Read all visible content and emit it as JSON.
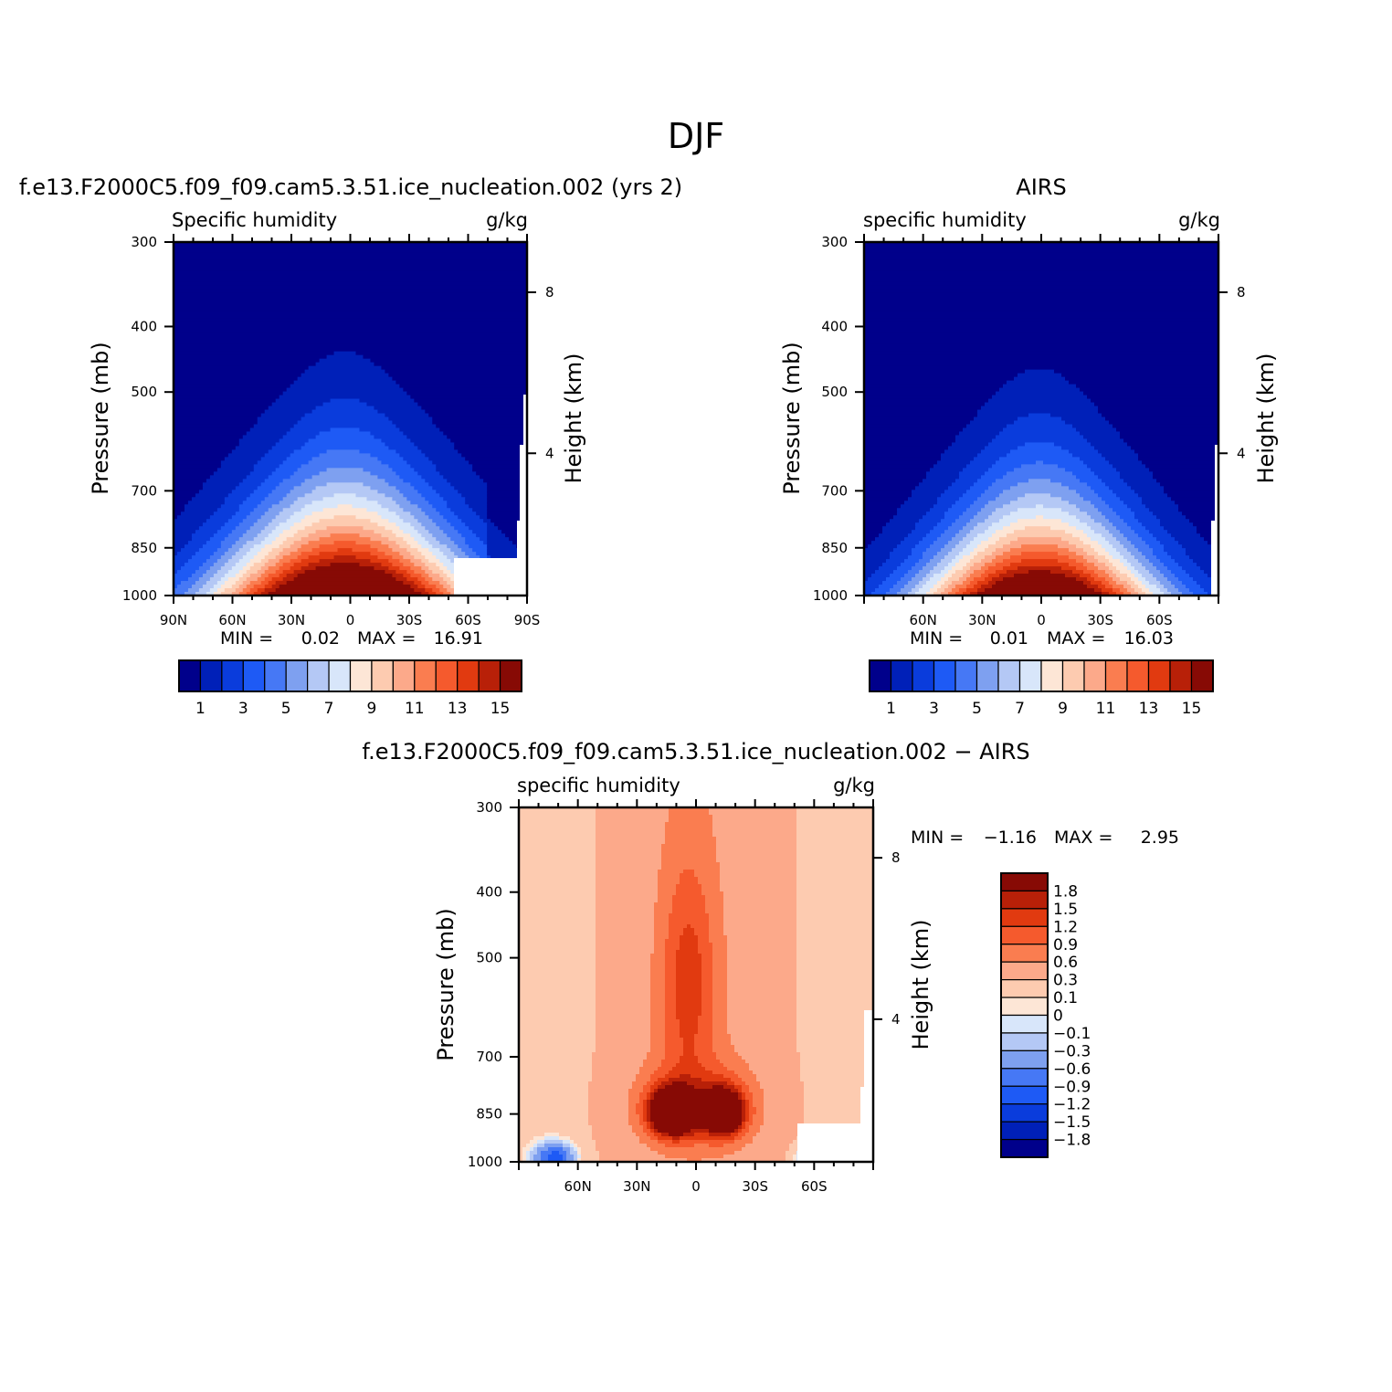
{
  "figure": {
    "title": "DJF"
  },
  "colors": {
    "abs_levels": [
      "#00008b",
      "#0020b8",
      "#0a3cdc",
      "#1e5af5",
      "#4678f5",
      "#7ea0f0",
      "#b4c8f5",
      "#d8e6fa",
      "#fde6d6",
      "#fdcbb0",
      "#fca98a",
      "#fa7d50",
      "#f55a2d",
      "#e13a10",
      "#b82008",
      "#870a05"
    ],
    "diff_levels": [
      "#00008b",
      "#0020b8",
      "#0a3cdc",
      "#1e5af5",
      "#4678f5",
      "#7ea0f0",
      "#b4c8f5",
      "#d8e6fa",
      "#fde6d6",
      "#fdcbb0",
      "#fca98a",
      "#fa7d50",
      "#f55a2d",
      "#e13a10",
      "#b82008",
      "#870a05"
    ]
  },
  "panels": [
    {
      "id": "model",
      "title": "f.e13.F2000C5.f09_f09.cam5.3.51.ice_nucleation.002 (yrs 2)",
      "left_label": "Specific humidity",
      "right_label": "g/kg",
      "ylabel": "Pressure (mb)",
      "ylabel_right": "Height (km)",
      "yticks": [
        "300",
        "400",
        "500",
        "700",
        "850",
        "1000"
      ],
      "yticks_right": [
        "8",
        "4"
      ],
      "xticks": [
        "90N",
        "60N",
        "30N",
        "0",
        "30S",
        "60S",
        "90S"
      ],
      "min_label": "MIN =",
      "min_value": "0.02",
      "max_label": "MAX =",
      "max_value": "16.91",
      "colorbar_labels": [
        "1",
        "3",
        "5",
        "7",
        "9",
        "11",
        "13",
        "15"
      ]
    },
    {
      "id": "obs",
      "title": "AIRS",
      "left_label": "specific humidity",
      "right_label": "g/kg",
      "ylabel": "Pressure (mb)",
      "ylabel_right": "Height (km)",
      "yticks": [
        "300",
        "400",
        "500",
        "700",
        "850",
        "1000"
      ],
      "yticks_right": [
        "8",
        "4"
      ],
      "xticks": [
        "60N",
        "30N",
        "0",
        "30S",
        "60S"
      ],
      "min_label": "MIN =",
      "min_value": "0.01",
      "max_label": "MAX =",
      "max_value": "16.03",
      "colorbar_labels": [
        "1",
        "3",
        "5",
        "7",
        "9",
        "11",
        "13",
        "15"
      ]
    },
    {
      "id": "diff",
      "title": "f.e13.F2000C5.f09_f09.cam5.3.51.ice_nucleation.002 − AIRS",
      "left_label": "specific humidity",
      "right_label": "g/kg",
      "ylabel": "Pressure (mb)",
      "ylabel_right": "Height (km)",
      "yticks": [
        "300",
        "400",
        "500",
        "700",
        "850",
        "1000"
      ],
      "yticks_right": [
        "8",
        "4"
      ],
      "xticks": [
        "60N",
        "30N",
        "0",
        "30S",
        "60S"
      ],
      "min_label": "MIN =",
      "min_value": "−1.16",
      "max_label": "MAX =",
      "max_value": "2.95",
      "colorbar_labels": [
        "1.8",
        "1.5",
        "1.2",
        "0.9",
        "0.6",
        "0.3",
        "0.1",
        "0",
        "−0.1",
        "−0.3",
        "−0.6",
        "−0.9",
        "−1.2",
        "−1.5",
        "−1.8"
      ]
    }
  ],
  "chart_data": [
    {
      "type": "heatmap",
      "title": "f.e13.F2000C5.f09_f09.cam5.3.51.ice_nucleation.002 (yrs 2)",
      "subtitle": "Specific humidity",
      "units": "g/kg",
      "ylabel": "Pressure (mb)",
      "ylabel_right": "Height (km)",
      "x_ticks": [
        "90N",
        "60N",
        "30N",
        "0",
        "30S",
        "60S",
        "90S"
      ],
      "y_ticks": [
        300,
        400,
        500,
        700,
        850,
        1000
      ],
      "y_log": true,
      "contour_levels": [
        1,
        2,
        3,
        4,
        5,
        6,
        7,
        8,
        9,
        10,
        11,
        12,
        13,
        14,
        15
      ],
      "min": 0.02,
      "max": 16.91,
      "surface_max_by_latitude": {
        "lat": [
          90,
          60,
          30,
          0,
          -30,
          -60,
          -90
        ],
        "q": [
          1,
          4,
          11,
          17,
          12,
          4,
          0.5
        ]
      },
      "peak_height_1gkg_mb": 380
    },
    {
      "type": "heatmap",
      "title": "AIRS",
      "subtitle": "specific humidity",
      "units": "g/kg",
      "ylabel": "Pressure (mb)",
      "ylabel_right": "Height (km)",
      "x_ticks": [
        "60N",
        "30N",
        "0",
        "30S",
        "60S"
      ],
      "y_ticks": [
        300,
        400,
        500,
        700,
        850,
        1000
      ],
      "y_log": true,
      "contour_levels": [
        1,
        2,
        3,
        4,
        5,
        6,
        7,
        8,
        9,
        10,
        11,
        12,
        13,
        14,
        15
      ],
      "min": 0.01,
      "max": 16.03,
      "surface_max_by_latitude": {
        "lat": [
          90,
          60,
          30,
          0,
          -30,
          -60,
          -90
        ],
        "q": [
          0.5,
          3,
          10,
          16,
          11,
          3,
          0.5
        ]
      },
      "peak_height_1gkg_mb": 440
    },
    {
      "type": "heatmap",
      "title": "f.e13.F2000C5.f09_f09.cam5.3.51.ice_nucleation.002 − AIRS",
      "subtitle": "specific humidity",
      "units": "g/kg",
      "ylabel": "Pressure (mb)",
      "ylabel_right": "Height (km)",
      "x_ticks": [
        "60N",
        "30N",
        "0",
        "30S",
        "60S"
      ],
      "y_ticks": [
        300,
        400,
        500,
        700,
        850,
        1000
      ],
      "y_log": true,
      "contour_levels": [
        -1.8,
        -1.5,
        -1.2,
        -0.9,
        -0.6,
        -0.3,
        -0.1,
        0,
        0.1,
        0.3,
        0.6,
        0.9,
        1.2,
        1.5,
        1.8
      ],
      "min": -1.16,
      "max": 2.95,
      "maxima": [
        {
          "lat": 10,
          "p": 820,
          "value": 2.95
        },
        {
          "lat": -15,
          "p": 820,
          "value": 2.5
        }
      ]
    }
  ]
}
